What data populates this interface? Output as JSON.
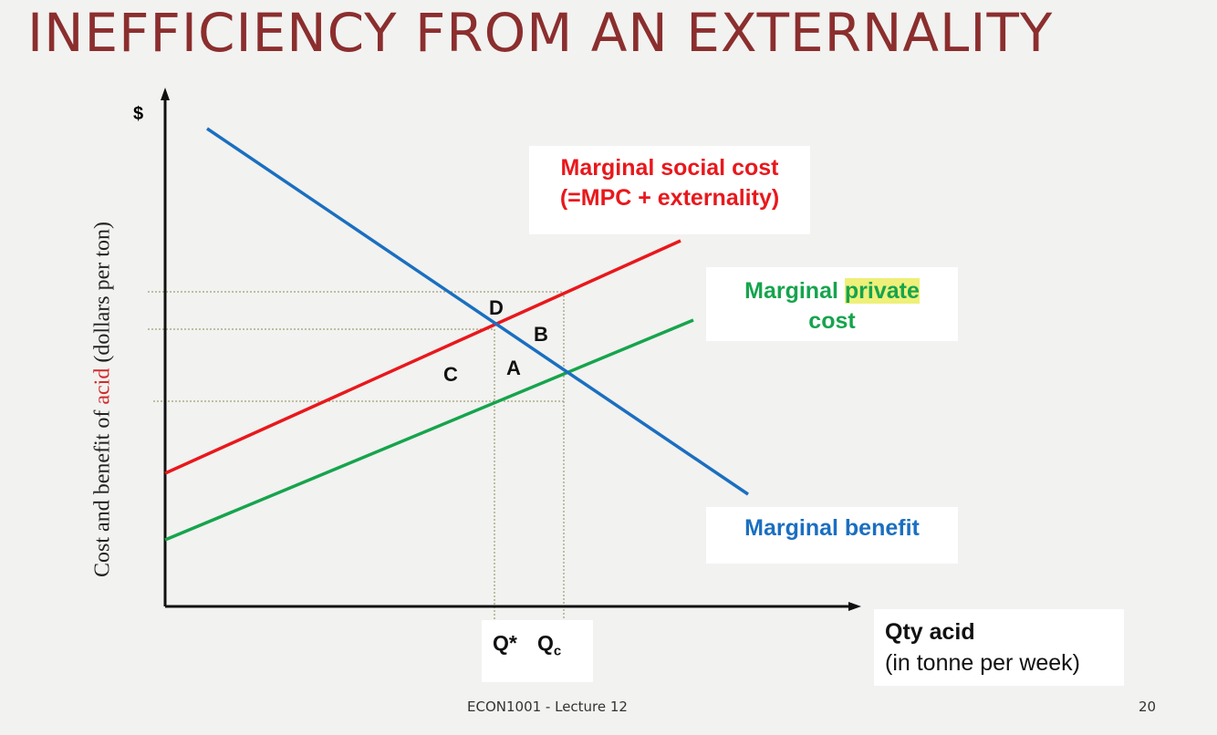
{
  "slide": {
    "title": "INEFFICIENCY FROM AN EXTERNALITY",
    "footer": "ECON1001 - Lecture 12",
    "page_number": "20"
  },
  "diagram": {
    "y_axis_symbol": "$",
    "y_axis_label_before": "Cost and benefit of ",
    "y_axis_label_highlight": "acid",
    "y_axis_label_after": " (dollars per ton)",
    "x_axis_label_line1": "Qty acid",
    "x_axis_label_line2": "(in tonne per week)",
    "q_star": "Q*",
    "q_c_main": "Q",
    "q_c_sub": "c",
    "curves": {
      "msc_line1": "Marginal social cost",
      "msc_line2": "(=MPC + externality)",
      "mpc_word1": "Marginal",
      "mpc_word2": "private",
      "mpc_line2": "cost",
      "mb": "Marginal benefit"
    },
    "points": {
      "a": "A",
      "b": "B",
      "c": "C",
      "d": "D"
    },
    "colors": {
      "msc": "#e8181c",
      "mpc": "#16a44d",
      "mb": "#1a6fc0",
      "title": "#8b2e2e"
    }
  }
}
